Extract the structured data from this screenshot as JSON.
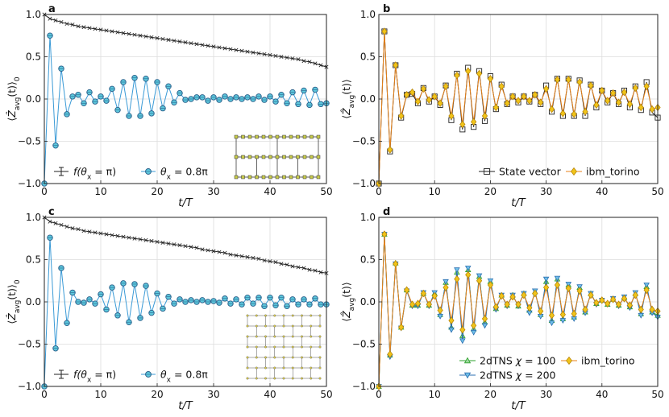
{
  "chart_data": [
    {
      "panel": "a",
      "type": "line",
      "xlabel": "t/T",
      "ylabel": "⟨Ẑ_avg(t)⟩₀",
      "ylabel_parts": {
        "a": "⟨",
        "b": "Ẑ",
        "sub": "avg",
        "c": "(t)⟩",
        "sub2": "0"
      },
      "xlim": [
        0,
        50
      ],
      "ylim": [
        -1,
        1
      ],
      "xticks": [
        0,
        10,
        20,
        30,
        40,
        50
      ],
      "xtick_labels": [
        "0",
        "10",
        "20",
        "30",
        "40",
        "50"
      ],
      "yticks": [
        -1,
        -0.5,
        0,
        0.5,
        1
      ],
      "ytick_labels": [
        "−1.0",
        "−0.5",
        "0.0",
        "0.5",
        "1.0"
      ],
      "x": [
        0,
        1,
        2,
        3,
        4,
        5,
        6,
        7,
        8,
        9,
        10,
        11,
        12,
        13,
        14,
        15,
        16,
        17,
        18,
        19,
        20,
        21,
        22,
        23,
        24,
        25,
        26,
        27,
        28,
        29,
        30,
        31,
        32,
        33,
        34,
        35,
        36,
        37,
        38,
        39,
        40,
        41,
        42,
        43,
        44,
        45,
        46,
        47,
        48,
        49,
        50
      ],
      "series": [
        {
          "name": "f(θx = π)",
          "legend_pre": "f(",
          "legend_var": "θ",
          "legend_sub": "x",
          "legend_post": " = π)",
          "color": "#222222",
          "marker": "x",
          "values": [
            1.0,
            0.95,
            0.93,
            0.91,
            0.89,
            0.88,
            0.86,
            0.85,
            0.84,
            0.83,
            0.82,
            0.81,
            0.8,
            0.79,
            0.78,
            0.77,
            0.76,
            0.75,
            0.74,
            0.73,
            0.72,
            0.71,
            0.7,
            0.69,
            0.68,
            0.67,
            0.66,
            0.65,
            0.64,
            0.63,
            0.62,
            0.61,
            0.6,
            0.59,
            0.58,
            0.57,
            0.56,
            0.55,
            0.54,
            0.53,
            0.52,
            0.51,
            0.5,
            0.49,
            0.48,
            0.47,
            0.45,
            0.44,
            0.42,
            0.4,
            0.38
          ]
        },
        {
          "name": "θx = 0.8π",
          "legend_pre": "",
          "legend_var": "θ",
          "legend_sub": "x",
          "legend_post": " = 0.8π",
          "color": "#3a9ad6",
          "fill": "#5cc7dc",
          "marker": "o",
          "values": [
            -1.0,
            0.75,
            -0.55,
            0.36,
            -0.18,
            0.03,
            0.05,
            -0.05,
            0.08,
            -0.03,
            0.03,
            -0.02,
            0.12,
            -0.13,
            0.2,
            -0.2,
            0.25,
            -0.2,
            0.24,
            -0.17,
            0.2,
            -0.11,
            0.15,
            -0.04,
            0.07,
            -0.01,
            0.0,
            0.02,
            0.02,
            -0.02,
            0.02,
            -0.01,
            0.03,
            0.0,
            0.02,
            0.0,
            0.02,
            0.0,
            0.03,
            -0.01,
            0.03,
            -0.03,
            0.05,
            -0.05,
            0.08,
            -0.06,
            0.1,
            -0.07,
            0.11,
            -0.06,
            -0.05
          ]
        }
      ],
      "legend_position": "lower-left",
      "inset": "heavy-hex lattice"
    },
    {
      "panel": "b",
      "type": "line",
      "xlabel": "t/T",
      "ylabel": "⟨Ẑ_avg(t)⟩",
      "ylabel_parts": {
        "a": "⟨",
        "b": "Ẑ",
        "sub": "avg",
        "c": "(t)⟩",
        "sub2": ""
      },
      "xlim": [
        0,
        50
      ],
      "ylim": [
        -1,
        1
      ],
      "xticks": [
        0,
        10,
        20,
        30,
        40,
        50
      ],
      "xtick_labels": [
        "0",
        "10",
        "20",
        "30",
        "40",
        "50"
      ],
      "yticks": [
        -1,
        -0.5,
        0,
        0.5,
        1
      ],
      "ytick_labels": [
        "−1.0",
        "−0.5",
        "0.0",
        "0.5",
        "1.0"
      ],
      "x": [
        0,
        1,
        2,
        3,
        4,
        5,
        6,
        7,
        8,
        9,
        10,
        11,
        12,
        13,
        14,
        15,
        16,
        17,
        18,
        19,
        20,
        21,
        22,
        23,
        24,
        25,
        26,
        27,
        28,
        29,
        30,
        31,
        32,
        33,
        34,
        35,
        36,
        37,
        38,
        39,
        40,
        41,
        42,
        43,
        44,
        45,
        46,
        47,
        48,
        49,
        50
      ],
      "series": [
        {
          "name": "State vector",
          "legend_pre": "State vector",
          "color": "#222222",
          "marker": "s",
          "values": [
            -1.0,
            0.8,
            -0.62,
            0.4,
            -0.22,
            0.05,
            0.06,
            -0.05,
            0.13,
            -0.03,
            0.03,
            -0.07,
            0.16,
            -0.25,
            0.3,
            -0.36,
            0.37,
            -0.33,
            0.33,
            -0.26,
            0.27,
            -0.12,
            0.17,
            -0.06,
            0.03,
            -0.04,
            0.03,
            -0.03,
            0.05,
            -0.06,
            0.16,
            -0.15,
            0.24,
            -0.2,
            0.24,
            -0.2,
            0.22,
            -0.2,
            0.17,
            -0.1,
            0.1,
            -0.04,
            0.07,
            -0.06,
            0.1,
            -0.1,
            0.15,
            -0.13,
            0.2,
            -0.16,
            -0.22
          ]
        },
        {
          "name": "ibm_torino",
          "legend_pre": "ibm_torino",
          "color": "#e8831a",
          "fill": "#f0c419",
          "marker": "d",
          "values": [
            -1.0,
            0.8,
            -0.6,
            0.4,
            -0.2,
            0.05,
            0.08,
            -0.03,
            0.12,
            -0.01,
            0.03,
            -0.05,
            0.15,
            -0.2,
            0.28,
            -0.3,
            0.33,
            -0.27,
            0.3,
            -0.2,
            0.24,
            -0.1,
            0.15,
            -0.05,
            0.03,
            -0.02,
            0.03,
            -0.02,
            0.05,
            -0.04,
            0.12,
            -0.12,
            0.23,
            -0.17,
            0.23,
            -0.18,
            0.2,
            -0.15,
            0.16,
            -0.07,
            0.1,
            -0.02,
            0.07,
            -0.04,
            0.08,
            -0.06,
            0.13,
            -0.1,
            0.15,
            -0.12,
            -0.1
          ]
        }
      ],
      "legend_position": "bottom-right"
    },
    {
      "panel": "c",
      "type": "line",
      "xlabel": "t/T",
      "ylabel": "⟨Ẑ_avg(t)⟩₀",
      "ylabel_parts": {
        "a": "⟨",
        "b": "Ẑ",
        "sub": "avg",
        "c": "(t)⟩",
        "sub2": "0"
      },
      "xlim": [
        0,
        50
      ],
      "ylim": [
        -1,
        1
      ],
      "xticks": [
        0,
        10,
        20,
        30,
        40,
        50
      ],
      "xtick_labels": [
        "0",
        "10",
        "20",
        "30",
        "40",
        "50"
      ],
      "yticks": [
        -1,
        -0.5,
        0,
        0.5,
        1
      ],
      "ytick_labels": [
        "−1.0",
        "−0.5",
        "0.0",
        "0.5",
        "1.0"
      ],
      "x": [
        0,
        1,
        2,
        3,
        4,
        5,
        6,
        7,
        8,
        9,
        10,
        11,
        12,
        13,
        14,
        15,
        16,
        17,
        18,
        19,
        20,
        21,
        22,
        23,
        24,
        25,
        26,
        27,
        28,
        29,
        30,
        31,
        32,
        33,
        34,
        35,
        36,
        37,
        38,
        39,
        40,
        41,
        42,
        43,
        44,
        45,
        46,
        47,
        48,
        49,
        50
      ],
      "series": [
        {
          "name": "f(θx = π)",
          "legend_pre": "f(",
          "legend_var": "θ",
          "legend_sub": "x",
          "legend_post": " = π)",
          "color": "#222222",
          "marker": "x",
          "values": [
            1.0,
            0.95,
            0.93,
            0.91,
            0.89,
            0.87,
            0.86,
            0.84,
            0.83,
            0.82,
            0.81,
            0.8,
            0.79,
            0.78,
            0.77,
            0.76,
            0.75,
            0.74,
            0.73,
            0.72,
            0.71,
            0.7,
            0.69,
            0.68,
            0.67,
            0.66,
            0.65,
            0.64,
            0.62,
            0.61,
            0.6,
            0.59,
            0.58,
            0.56,
            0.55,
            0.54,
            0.53,
            0.52,
            0.51,
            0.49,
            0.48,
            0.47,
            0.45,
            0.44,
            0.42,
            0.41,
            0.4,
            0.38,
            0.37,
            0.35,
            0.34
          ]
        },
        {
          "name": "θx = 0.8π",
          "legend_pre": "",
          "legend_var": "θ",
          "legend_sub": "x",
          "legend_post": " = 0.8π",
          "color": "#3a9ad6",
          "fill": "#5cc7dc",
          "marker": "o",
          "values": [
            -1.0,
            0.76,
            -0.55,
            0.4,
            -0.25,
            0.11,
            0.0,
            -0.01,
            0.03,
            -0.02,
            0.09,
            -0.09,
            0.17,
            -0.16,
            0.22,
            -0.24,
            0.21,
            -0.19,
            0.19,
            -0.13,
            0.1,
            -0.08,
            0.06,
            -0.02,
            0.03,
            0.0,
            0.02,
            0.0,
            0.02,
            0.0,
            0.01,
            -0.01,
            0.04,
            -0.02,
            0.03,
            -0.03,
            0.05,
            -0.02,
            0.05,
            -0.05,
            0.05,
            -0.04,
            0.05,
            -0.05,
            0.03,
            -0.03,
            0.03,
            -0.03,
            0.04,
            -0.03,
            -0.03
          ]
        }
      ],
      "legend_position": "lower-left",
      "inset": "square lattice"
    },
    {
      "panel": "d",
      "type": "line",
      "xlabel": "t/T",
      "ylabel": "⟨Ẑ_avg(t)⟩",
      "ylabel_parts": {
        "a": "⟨",
        "b": "Ẑ",
        "sub": "avg",
        "c": "(t)⟩",
        "sub2": ""
      },
      "xlim": [
        0,
        50
      ],
      "ylim": [
        -1,
        1
      ],
      "xticks": [
        0,
        10,
        20,
        30,
        40,
        50
      ],
      "xtick_labels": [
        "0",
        "10",
        "20",
        "30",
        "40",
        "50"
      ],
      "yticks": [
        -1,
        -0.5,
        0,
        0.5,
        1
      ],
      "ytick_labels": [
        "−1.0",
        "−0.5",
        "0.0",
        "0.5",
        "1.0"
      ],
      "x": [
        0,
        1,
        2,
        3,
        4,
        5,
        6,
        7,
        8,
        9,
        10,
        11,
        12,
        13,
        14,
        15,
        16,
        17,
        18,
        19,
        20,
        21,
        22,
        23,
        24,
        25,
        26,
        27,
        28,
        29,
        30,
        31,
        32,
        33,
        34,
        35,
        36,
        37,
        38,
        39,
        40,
        41,
        42,
        43,
        44,
        45,
        46,
        47,
        48,
        49,
        50
      ],
      "series": [
        {
          "name": "2dTNS χ = 100",
          "legend_pre": "2dTNS ",
          "legend_var": "χ",
          "legend_sub": "",
          "legend_post": " = 100",
          "color": "#2ca02c",
          "fill": "#9fd89f",
          "marker": "^",
          "values": [
            -1.0,
            0.8,
            -0.63,
            0.46,
            -0.3,
            0.14,
            -0.04,
            -0.04,
            0.1,
            -0.04,
            0.1,
            -0.15,
            0.23,
            -0.3,
            0.35,
            -0.4,
            0.38,
            -0.32,
            0.3,
            -0.24,
            0.24,
            -0.08,
            0.08,
            -0.04,
            0.08,
            -0.05,
            0.1,
            -0.1,
            0.12,
            -0.15,
            0.24,
            -0.22,
            0.27,
            -0.2,
            0.2,
            -0.18,
            0.17,
            -0.12,
            0.1,
            -0.02,
            0.02,
            -0.03,
            0.03,
            -0.04,
            0.05,
            -0.06,
            0.1,
            -0.14,
            0.18,
            -0.12,
            -0.16
          ]
        },
        {
          "name": "2dTNS χ = 200",
          "legend_pre": "2dTNS ",
          "legend_var": "χ",
          "legend_sub": "",
          "legend_post": " = 200",
          "color": "#2b6fb0",
          "fill": "#6fbfe8",
          "marker": "v",
          "values": [
            -1.0,
            0.8,
            -0.65,
            0.45,
            -0.31,
            0.13,
            -0.05,
            -0.05,
            0.11,
            -0.05,
            0.11,
            -0.17,
            0.24,
            -0.33,
            0.38,
            -0.46,
            0.4,
            -0.36,
            0.31,
            -0.28,
            0.25,
            -0.09,
            0.08,
            -0.05,
            0.08,
            -0.05,
            0.1,
            -0.13,
            0.13,
            -0.17,
            0.27,
            -0.25,
            0.28,
            -0.22,
            0.21,
            -0.2,
            0.18,
            -0.13,
            0.1,
            -0.03,
            0.02,
            -0.03,
            0.04,
            -0.05,
            0.06,
            -0.07,
            0.11,
            -0.16,
            0.2,
            -0.13,
            -0.18
          ]
        },
        {
          "name": "ibm_torino",
          "legend_pre": "ibm_torino",
          "color": "#e8831a",
          "fill": "#f0c419",
          "marker": "d",
          "values": [
            -1.0,
            0.8,
            -0.62,
            0.45,
            -0.3,
            0.14,
            -0.03,
            -0.02,
            0.1,
            -0.03,
            0.07,
            -0.1,
            0.17,
            -0.22,
            0.27,
            -0.33,
            0.32,
            -0.28,
            0.25,
            -0.2,
            0.2,
            -0.06,
            0.07,
            -0.03,
            0.06,
            -0.03,
            0.08,
            -0.07,
            0.1,
            -0.11,
            0.17,
            -0.16,
            0.2,
            -0.15,
            0.16,
            -0.14,
            0.13,
            -0.09,
            0.08,
            -0.01,
            0.02,
            -0.02,
            0.03,
            -0.03,
            0.04,
            -0.04,
            0.08,
            -0.09,
            0.14,
            -0.09,
            -0.11
          ]
        }
      ],
      "legend_position": "bottom-right"
    }
  ]
}
